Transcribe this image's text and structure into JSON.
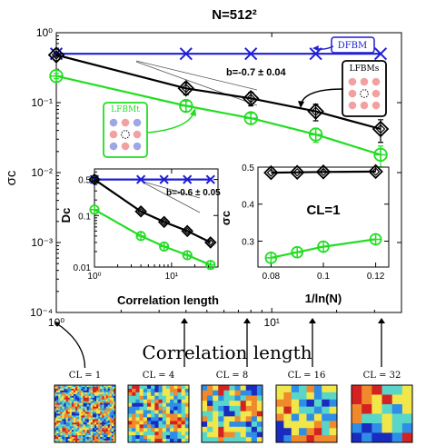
{
  "colors": {
    "blue": "#1f1fd2",
    "black": "#000000",
    "green": "#22dd22",
    "axis": "#000000",
    "lattice_fill": "#f2a0a0",
    "lattice_fill_alt": "#9fa6e6"
  },
  "chart_data": [
    {
      "id": "main",
      "type": "line",
      "title": "N=512²",
      "ylabel": "σc",
      "xlabel": "Correlation length",
      "x_scale": "log",
      "y_scale": "log",
      "xlim": [
        1,
        40
      ],
      "ylim": [
        0.0001,
        1
      ],
      "x_ticks": [
        {
          "value": 1,
          "label": "10⁰"
        },
        {
          "value": 10,
          "label": "10¹"
        }
      ],
      "y_ticks": [
        {
          "value": 1,
          "label": "10⁰"
        },
        {
          "value": 0.1,
          "label": "10⁻¹"
        },
        {
          "value": 0.01,
          "label": "10⁻²"
        },
        {
          "value": 0.001,
          "label": "10⁻³"
        },
        {
          "value": 0.0001,
          "label": "10⁻⁴"
        }
      ],
      "series": [
        {
          "name": "DFBM",
          "color": "#1f1fd2",
          "marker": "x",
          "x": [
            1,
            4,
            8,
            16,
            32
          ],
          "y": [
            0.5,
            0.5,
            0.5,
            0.5,
            0.5
          ]
        },
        {
          "name": "LFBMs",
          "color": "#000000",
          "marker": "diamond",
          "x": [
            1,
            4,
            8,
            16,
            32
          ],
          "y": [
            0.48,
            0.16,
            0.115,
            0.075,
            0.042
          ],
          "err": [
            0.02,
            0.03,
            0.025,
            0.02,
            0.015
          ]
        },
        {
          "name": "LFBMt",
          "color": "#22dd22",
          "marker": "circle-plus",
          "x": [
            1,
            4,
            8,
            16,
            32
          ],
          "y": [
            0.24,
            0.09,
            0.06,
            0.035,
            0.018
          ],
          "err": [
            0.02,
            0.015,
            0.01,
            0.008,
            0.006
          ]
        }
      ],
      "annotations": [
        {
          "text": "b=-0.7 ± 0.04"
        },
        {
          "text": "DFBM"
        },
        {
          "text": "LFBMs"
        },
        {
          "text": "LFBMt"
        }
      ]
    },
    {
      "id": "inset_left",
      "type": "line",
      "ylabel": "Dc",
      "xlabel": "Correlation length",
      "x_scale": "log",
      "y_scale": "log",
      "xlim": [
        1,
        40
      ],
      "ylim": [
        0.01,
        0.8
      ],
      "x_ticks": [
        {
          "value": 1,
          "label": "10⁰"
        },
        {
          "value": 10,
          "label": "10¹"
        }
      ],
      "y_ticks": [
        {
          "value": 0.5,
          "label": "0.5"
        },
        {
          "value": 0.1,
          "label": "0.1"
        },
        {
          "value": 0.01,
          "label": "0.01"
        }
      ],
      "series": [
        {
          "name": "DFBM",
          "color": "#1f1fd2",
          "marker": "x",
          "x": [
            1,
            4,
            8,
            16,
            32
          ],
          "y": [
            0.5,
            0.5,
            0.5,
            0.5,
            0.5
          ]
        },
        {
          "name": "LFBMs",
          "color": "#000000",
          "marker": "diamond",
          "x": [
            1,
            4,
            8,
            16,
            32
          ],
          "y": [
            0.5,
            0.12,
            0.075,
            0.05,
            0.03
          ]
        },
        {
          "name": "LFBMt",
          "color": "#22dd22",
          "marker": "circle-plus",
          "x": [
            1,
            4,
            8,
            16,
            32
          ],
          "y": [
            0.13,
            0.04,
            0.025,
            0.017,
            0.011
          ]
        }
      ],
      "annotations": [
        {
          "text": "b=-0.6 ± 0.05"
        }
      ]
    },
    {
      "id": "inset_right",
      "type": "line",
      "ylabel": "σc",
      "xlabel": "1/ln(N)",
      "x_scale": "linear",
      "y_scale": "linear",
      "xlim": [
        0.075,
        0.125
      ],
      "ylim": [
        0.23,
        0.5
      ],
      "x_ticks": [
        {
          "value": 0.08,
          "label": "0.08"
        },
        {
          "value": 0.1,
          "label": "0.1"
        },
        {
          "value": 0.12,
          "label": "0.12"
        }
      ],
      "y_ticks": [
        {
          "value": 0.5,
          "label": "0.5"
        },
        {
          "value": 0.4,
          "label": "0.4"
        },
        {
          "value": 0.3,
          "label": "0.3"
        }
      ],
      "series": [
        {
          "name": "LFBMs",
          "color": "#000000",
          "marker": "diamond",
          "x": [
            0.08,
            0.09,
            0.1,
            0.12
          ],
          "y": [
            0.485,
            0.486,
            0.487,
            0.488
          ]
        },
        {
          "name": "LFBMt",
          "color": "#22dd22",
          "marker": "circle-plus",
          "x": [
            0.08,
            0.09,
            0.1,
            0.12
          ],
          "y": [
            0.255,
            0.27,
            0.285,
            0.305
          ]
        }
      ],
      "annotations": [
        {
          "text": "CL=1"
        }
      ]
    }
  ],
  "thumbnails": {
    "labels": [
      "CL = 1",
      "CL = 4",
      "CL = 8",
      "CL = 16",
      "CL = 32"
    ],
    "color_scale": [
      "#1a2bbf",
      "#2e8de6",
      "#59d6c8",
      "#f1e64a",
      "#f0892c",
      "#d42222"
    ]
  }
}
